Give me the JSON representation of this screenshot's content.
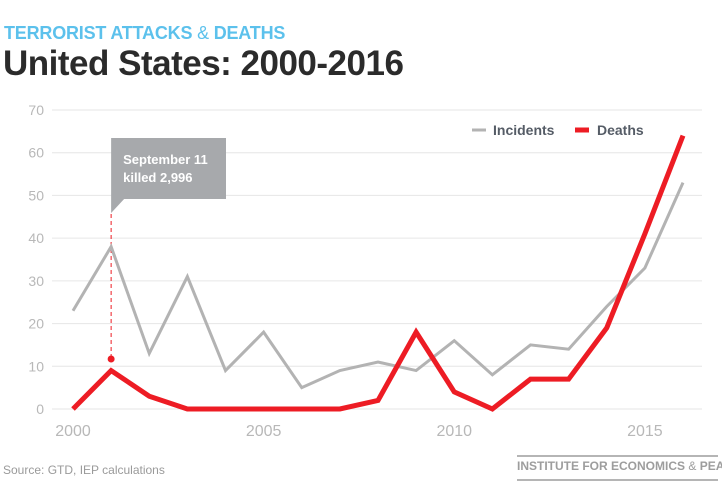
{
  "header": {
    "kicker_part1": "TERRORIST ATTACKS",
    "kicker_amp": "&",
    "kicker_part2": "DEATHS",
    "title": "United States: 2000-2016"
  },
  "footer": {
    "source": "Source: GTD, IEP calculations",
    "logo_part1": "INSTITUTE FOR ECONOMICS",
    "logo_amp": "&",
    "logo_part2": "PEACE"
  },
  "chart_data": {
    "type": "line",
    "x": [
      2000,
      2001,
      2002,
      2003,
      2004,
      2005,
      2006,
      2007,
      2008,
      2009,
      2010,
      2011,
      2012,
      2013,
      2014,
      2015,
      2016
    ],
    "xticks": [
      "2000",
      "2005",
      "2010",
      "2015"
    ],
    "yticks": [
      "0",
      "10",
      "20",
      "30",
      "40",
      "50",
      "60",
      "70"
    ],
    "ylim": [
      0,
      70
    ],
    "grid": true,
    "legend_position": "top-right",
    "series": [
      {
        "name": "Incidents",
        "color": "#b3b3b3",
        "values": [
          23,
          38,
          13,
          31,
          9,
          18,
          5,
          9,
          11,
          9,
          16,
          8,
          15,
          14,
          24,
          33,
          53
        ]
      },
      {
        "name": "Deaths",
        "color": "#ed1c24",
        "values": [
          0,
          9,
          3,
          0,
          0,
          0,
          0,
          0,
          2,
          18,
          4,
          0,
          7,
          7,
          19,
          41,
          64
        ]
      }
    ],
    "annotation": {
      "x": 2001,
      "line1": "September 11",
      "line2": "killed 2,996",
      "box_color": "#a7a9ac"
    }
  }
}
